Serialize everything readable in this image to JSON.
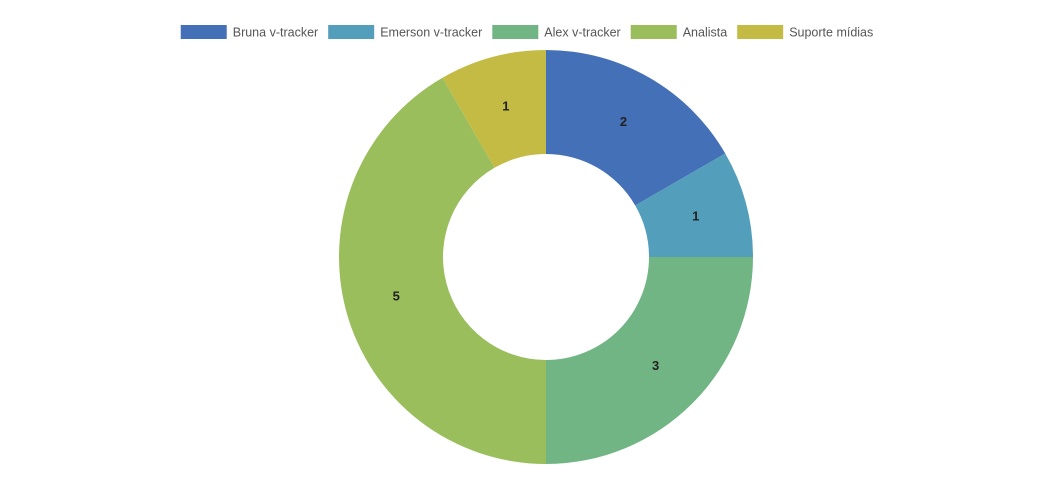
{
  "chart_data": {
    "type": "doughnut",
    "categories": [
      "Bruna v-tracker",
      "Emerson v-tracker",
      "Alex v-tracker",
      "Analista",
      "Suporte mídias"
    ],
    "values": [
      2,
      1,
      3,
      5,
      1
    ],
    "colors": [
      "#4470b8",
      "#539fbb",
      "#72b585",
      "#9bbe5c",
      "#c4bb45"
    ],
    "legend": "top"
  }
}
